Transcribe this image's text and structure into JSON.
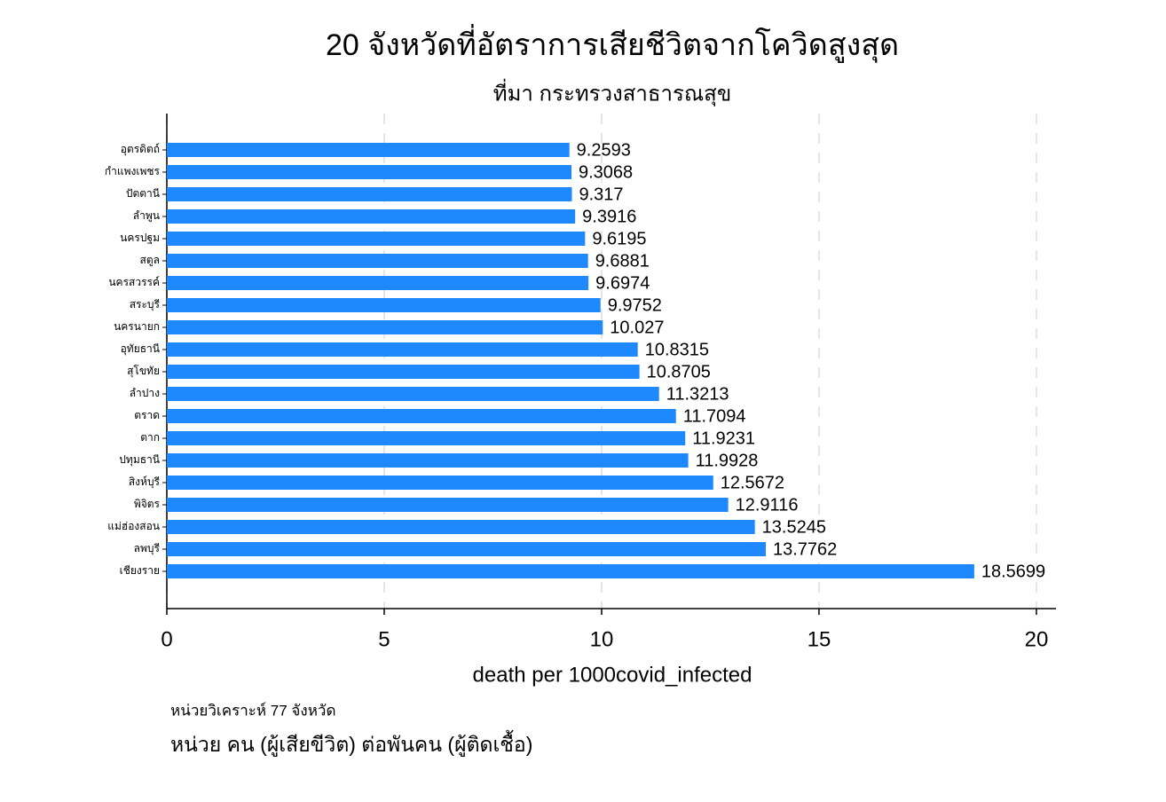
{
  "chart_data": {
    "type": "barh",
    "title": "20 จังหวัดที่อัตราการเสียชีวิตจากโควิดสูงสุด",
    "subtitle": "ที่มา กระทรวงสาธารณสุข",
    "xlabel": "death per 1000covid_infected",
    "annotations": [
      "หน่วยวิเคราะห์ 77 จังหวัด",
      "หน่วย คน (ผู้เสียขีวิต) ต่อพันคน (ผู้ติดเชื้อ)"
    ],
    "categories": [
      "อุตรดิตถ์",
      "กำแพงเพชร",
      "ปัตตานี",
      "ลำพูน",
      "นครปฐม",
      "สตูล",
      "นครสวรรค์",
      "สระบุรี",
      "นครนายก",
      "อุทัยธานี",
      "สุโขทัย",
      "ลำปาง",
      "ตราด",
      "ตาก",
      "ปทุมธานี",
      "สิงห์บุรี",
      "พิจิตร",
      "แม่ฮ่องสอน",
      "ลพบุรี",
      "เชียงราย"
    ],
    "values": [
      9.2593,
      9.3068,
      9.317,
      9.3916,
      9.6195,
      9.6881,
      9.6974,
      9.9752,
      10.027,
      10.8315,
      10.8705,
      11.3213,
      11.7094,
      11.9231,
      11.9928,
      12.5672,
      12.9116,
      13.5245,
      13.7762,
      18.5699
    ],
    "color": "#1e88ff",
    "xlim": [
      0,
      20.45
    ],
    "xticks": [
      0,
      5,
      10,
      15,
      20
    ],
    "grid": true
  }
}
